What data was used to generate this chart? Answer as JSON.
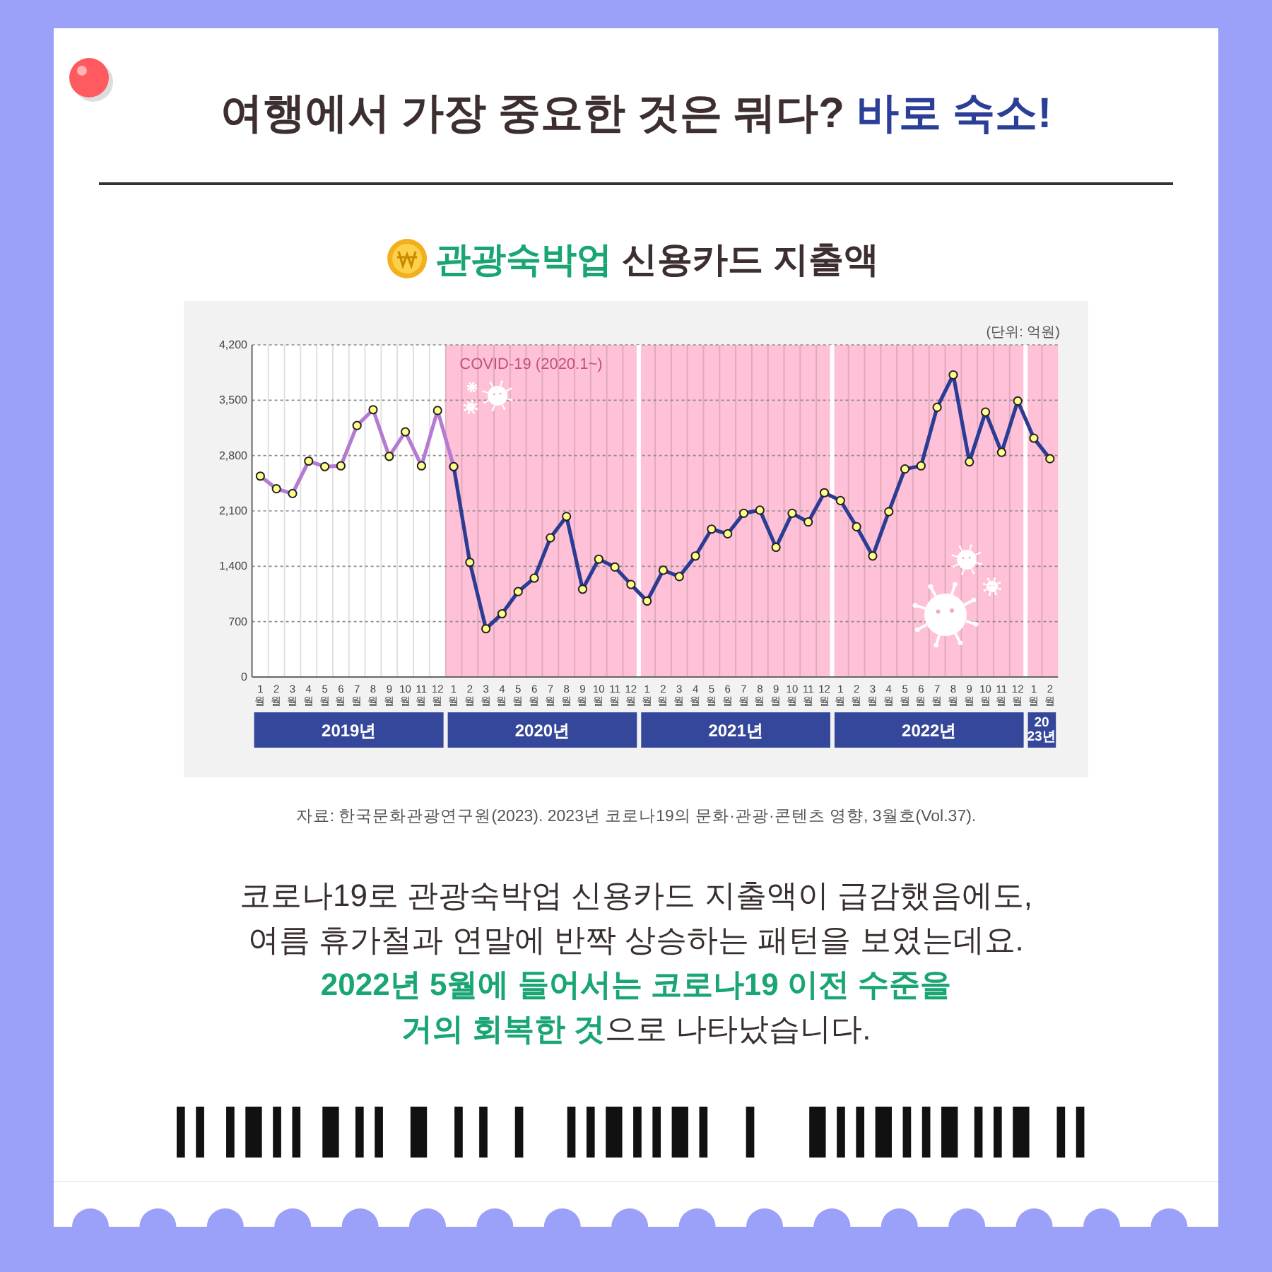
{
  "chart_data": {
    "type": "line",
    "title": "여행에서 가장 중요한 것은 뭐다? **바로 숙소!**",
    "subtitle": "**관광숙박업** 신용카드 지출액",
    "ylabel": "(단위: 억원)",
    "x": [
      "2019-01",
      "2019-02",
      "2019-03",
      "2019-04",
      "2019-05",
      "2019-06",
      "2019-07",
      "2019-08",
      "2019-09",
      "2019-10",
      "2019-11",
      "2019-12",
      "2020-01",
      "2020-02",
      "2020-03",
      "2020-04",
      "2020-05",
      "2020-06",
      "2020-07",
      "2020-08",
      "2020-09",
      "2020-10",
      "2020-11",
      "2020-12",
      "2021-01",
      "2021-02",
      "2021-03",
      "2021-04",
      "2021-05",
      "2021-06",
      "2021-07",
      "2021-08",
      "2021-09",
      "2021-10",
      "2021-11",
      "2021-12",
      "2022-01",
      "2022-02",
      "2022-03",
      "2022-04",
      "2022-05",
      "2022-06",
      "2022-07",
      "2022-08",
      "2022-09",
      "2022-10",
      "2022-11",
      "2022-12",
      "2023-01",
      "2023-02"
    ],
    "xlim": [
      "2018-12-16",
      "2023-02-15"
    ],
    "xticks": [
      {
        "value": "2019-01",
        "label": "1월"
      },
      {
        "value": "2019-02",
        "label": "2월"
      },
      {
        "value": "2019-03",
        "label": "3월"
      },
      {
        "value": "2019-04",
        "label": "4월"
      },
      {
        "value": "2019-05",
        "label": "5월"
      },
      {
        "value": "2019-06",
        "label": "6월"
      },
      {
        "value": "2019-07",
        "label": "7월"
      },
      {
        "value": "2019-08",
        "label": "8월"
      },
      {
        "value": "2019-09",
        "label": "9월"
      },
      {
        "value": "2019-10",
        "label": "10월"
      },
      {
        "value": "2019-11",
        "label": "11월"
      },
      {
        "value": "2019-12",
        "label": "12월"
      },
      {
        "value": "2020-01",
        "label": "1월"
      },
      {
        "value": "2020-02",
        "label": "2월"
      },
      {
        "value": "2020-03",
        "label": "3월"
      },
      {
        "value": "2020-04",
        "label": "4월"
      },
      {
        "value": "2020-05",
        "label": "5월"
      },
      {
        "value": "2020-06",
        "label": "6월"
      },
      {
        "value": "2020-07",
        "label": "7월"
      },
      {
        "value": "2020-08",
        "label": "8월"
      },
      {
        "value": "2020-09",
        "label": "9월"
      },
      {
        "value": "2020-10",
        "label": "10월"
      },
      {
        "value": "2020-11",
        "label": "11월"
      },
      {
        "value": "2020-12",
        "label": "12월"
      },
      {
        "value": "2021-01",
        "label": "1월"
      },
      {
        "value": "2021-02",
        "label": "2월"
      },
      {
        "value": "2021-03",
        "label": "3월"
      },
      {
        "value": "2021-04",
        "label": "4월"
      },
      {
        "value": "2021-05",
        "label": "5월"
      },
      {
        "value": "2021-06",
        "label": "6월"
      },
      {
        "value": "2021-07",
        "label": "7월"
      },
      {
        "value": "2021-08",
        "label": "8월"
      },
      {
        "value": "2021-09",
        "label": "9월"
      },
      {
        "value": "2021-10",
        "label": "10월"
      },
      {
        "value": "2021-11",
        "label": "11월"
      },
      {
        "value": "2021-12",
        "label": "12월"
      },
      {
        "value": "2022-01",
        "label": "1월"
      },
      {
        "value": "2022-02",
        "label": "2월"
      },
      {
        "value": "2022-03",
        "label": "3월"
      },
      {
        "value": "2022-04",
        "label": "4월"
      },
      {
        "value": "2022-05",
        "label": "5월"
      },
      {
        "value": "2022-06",
        "label": "6월"
      },
      {
        "value": "2022-07",
        "label": "7월"
      },
      {
        "value": "2022-08",
        "label": "8월"
      },
      {
        "value": "2022-09",
        "label": "9월"
      },
      {
        "value": "2022-10",
        "label": "10월"
      },
      {
        "value": "2022-11",
        "label": "11월"
      },
      {
        "value": "2022-12",
        "label": "12월"
      },
      {
        "value": "2023-01",
        "label": "1월"
      },
      {
        "value": "2023-02",
        "label": "2월"
      }
    ],
    "x2lim": [
      "2018-12-16",
      "2023-02-15"
    ],
    "x2ticks": [
      {
        "value": "2019-06-16",
        "label": "2019년"
      },
      {
        "value": "2020-06-16",
        "label": "2020년"
      },
      {
        "value": "2021-06-16",
        "label": "2021년"
      },
      {
        "value": "2022-06-16",
        "label": "2022년"
      },
      {
        "value": "2023-01-16",
        "label": "2023년"
      }
    ],
    "ylim": [
      0,
      4200
    ],
    "yticks": [
      0,
      700,
      {
        "value": 1400,
        "label": "1,400"
      },
      {
        "value": 2100,
        "label": "2,100"
      },
      {
        "value": 2800,
        "label": "2,800"
      },
      {
        "value": 3500,
        "label": "3,500"
      },
      {
        "value": 4200,
        "label": "4,200"
      }
    ],
    "grid": true,
    "marker": "circle",
    "series": [
      {
        "color": "#b57ad2",
        "values": [
          2540,
          2380,
          2320,
          2730,
          2660,
          2670,
          3180,
          3380,
          2790,
          3100,
          2670,
          3370,
          2660,
          null,
          null,
          null,
          null,
          null,
          null,
          null,
          null,
          null,
          null,
          null,
          null,
          null,
          null,
          null,
          null,
          null,
          null,
          null,
          null,
          null,
          null,
          null,
          null,
          null,
          null,
          null,
          null,
          null,
          null,
          null,
          null,
          null,
          null,
          null,
          null,
          null
        ]
      },
      {
        "color": "#2a3c93",
        "values": [
          null,
          null,
          null,
          null,
          null,
          null,
          null,
          null,
          null,
          null,
          null,
          null,
          2660,
          1450,
          610,
          800,
          1080,
          1250,
          1760,
          2030,
          1110,
          1490,
          1390,
          1170,
          960,
          1350,
          1270,
          1530,
          1870,
          1810,
          2070,
          2110,
          1640,
          2070,
          1960,
          2330,
          2230,
          1900,
          1530,
          2090,
          2630,
          2670,
          3410,
          3820,
          2720,
          3350,
          2840,
          3490,
          3020,
          2760
        ]
      }
    ],
    "bands": [
      {
        "axis": "x",
        "from": "2019-12-16",
        "to": "2023-02-15",
        "label": "COVID-19 (2020.1~)",
        "color": "#ffc1d7"
      }
    ],
    "ref_lines": [
      {
        "axis": "x",
        "value": "2020-12-16",
        "color": "#ffffff"
      },
      {
        "axis": "x",
        "value": "2021-12-16",
        "color": "#ffffff"
      },
      {
        "axis": "x",
        "value": "2022-12-16",
        "color": "#ffffff"
      }
    ],
    "annotations": [
      "자료: 한국문화관광연구원(2023). 2023년 코로나19의 문화·관광·콘텐츠 영향, 3월호(Vol.37).",
      "코로나19로 관광숙박업 신용카드 지출액이 급감했음에도,",
      "여름 휴가철과 연말에 반짝 상승하는 패턴을 보였는데요.",
      "**2022년 5월에 들어서는 코로나19 이전 수준을**",
      "**거의 회복한 것**으로 나타났습니다."
    ]
  }
}
